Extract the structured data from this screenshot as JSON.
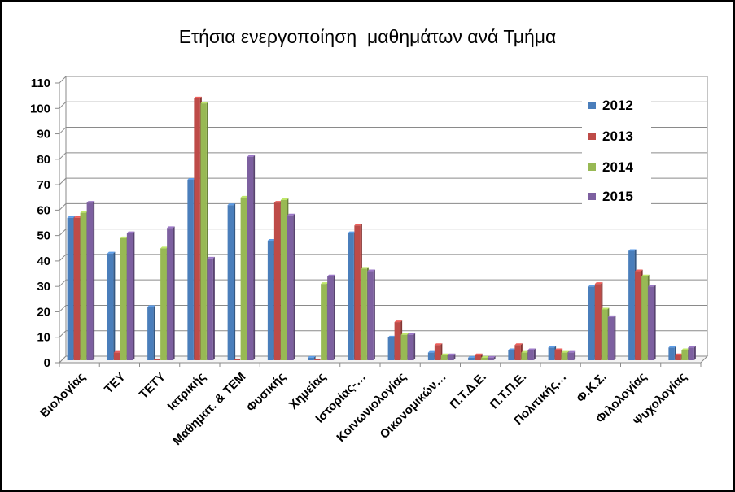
{
  "chart_data": {
    "type": "bar",
    "title": "Ετήσια ενεργοποίηση  μαθημάτων ανά Τμήμα",
    "xlabel": "",
    "ylabel": "",
    "ylim": [
      0,
      110
    ],
    "yticks": [
      0,
      10,
      20,
      30,
      40,
      50,
      60,
      70,
      80,
      90,
      100,
      110
    ],
    "grid": true,
    "legend_position": "right",
    "categories": [
      "Βιολογίας",
      "ΤΕΥ",
      "ΤΕΤΥ",
      "Ιατρικής",
      "Μαθηματ. & ΤΕΜ",
      "Φυσικής",
      "Χημείας",
      "Ιστορίας-…",
      "Κοινωνιολογίας",
      "Οικονομικών…",
      "Π.Τ.Δ.Ε.",
      "Π.Τ.Π.Ε.",
      "Πολιτικής…",
      "Φ.Κ.Σ.",
      "Φιλολογίας",
      "Ψυχολογίας"
    ],
    "series": [
      {
        "name": "2012",
        "color": "#4a7ebb",
        "values": [
          56,
          42,
          21,
          71,
          61,
          47,
          1,
          50,
          9,
          3,
          1,
          4,
          5,
          29,
          43,
          5
        ]
      },
      {
        "name": "2013",
        "color": "#be4b48",
        "values": [
          56,
          3,
          0,
          103,
          0,
          62,
          0,
          53,
          15,
          6,
          2,
          6,
          4,
          30,
          35,
          2
        ]
      },
      {
        "name": "2014",
        "color": "#98b954",
        "values": [
          58,
          48,
          44,
          101,
          64,
          63,
          30,
          36,
          10,
          2,
          1,
          3,
          3,
          20,
          33,
          4
        ]
      },
      {
        "name": "2015",
        "color": "#7d60a0",
        "values": [
          62,
          50,
          52,
          40,
          80,
          57,
          33,
          35,
          10,
          2,
          1,
          4,
          3,
          17,
          29,
          5
        ]
      }
    ]
  }
}
